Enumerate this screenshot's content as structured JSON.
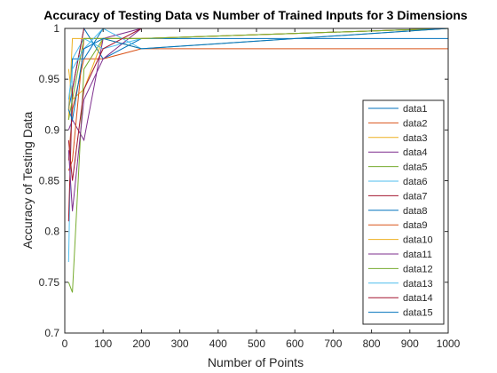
{
  "chart_data": {
    "type": "line",
    "title": "Accuracy of Testing Data vs Number of Trained Inputs for 3 Dimensions",
    "xlabel": "Number of Points",
    "ylabel": "Accuracy of Testing Data",
    "xlim": [
      0,
      1000
    ],
    "ylim": [
      0.7,
      1
    ],
    "xticks": [
      0,
      100,
      200,
      300,
      400,
      500,
      600,
      700,
      800,
      900,
      1000
    ],
    "yticks": [
      0.7,
      0.75,
      0.8,
      0.85,
      0.9,
      0.95,
      1
    ],
    "xtick_labels": [
      "0",
      "100",
      "200",
      "300",
      "400",
      "500",
      "600",
      "700",
      "800",
      "900",
      "1000"
    ],
    "ytick_labels": [
      "0.7",
      "0.75",
      "0.8",
      "0.85",
      "0.9",
      "0.95",
      "1"
    ],
    "grid": false,
    "legend_position": "right",
    "x": [
      10,
      20,
      50,
      100,
      200,
      1000
    ],
    "series": [
      {
        "name": "data1",
        "color": "#0072BD",
        "values": [
          0.92,
          0.94,
          1.0,
          0.97,
          0.99,
          0.99
        ]
      },
      {
        "name": "data2",
        "color": "#D95319",
        "values": [
          0.87,
          0.92,
          0.97,
          0.97,
          0.98,
          0.98
        ]
      },
      {
        "name": "data3",
        "color": "#EDB120",
        "values": [
          0.96,
          0.93,
          0.94,
          0.99,
          0.98,
          1.0
        ]
      },
      {
        "name": "data4",
        "color": "#7E2F8E",
        "values": [
          0.9,
          0.91,
          0.89,
          0.99,
          1.0,
          1.0
        ]
      },
      {
        "name": "data5",
        "color": "#77AC30",
        "values": [
          0.75,
          0.74,
          0.96,
          0.99,
          0.99,
          1.0
        ]
      },
      {
        "name": "data6",
        "color": "#4DBEEE",
        "values": [
          0.77,
          0.97,
          0.99,
          0.98,
          0.99,
          1.0
        ]
      },
      {
        "name": "data7",
        "color": "#A2142F",
        "values": [
          0.81,
          0.94,
          1.0,
          1.0,
          1.0,
          1.0
        ]
      },
      {
        "name": "data8",
        "color": "#0072BD",
        "values": [
          0.92,
          0.97,
          0.97,
          1.0,
          1.0,
          1.0
        ]
      },
      {
        "name": "data9",
        "color": "#D95319",
        "values": [
          0.86,
          0.87,
          0.99,
          0.99,
          0.99,
          1.0
        ]
      },
      {
        "name": "data10",
        "color": "#EDB120",
        "values": [
          0.91,
          0.99,
          0.99,
          0.99,
          0.99,
          1.0
        ]
      },
      {
        "name": "data11",
        "color": "#7E2F8E",
        "values": [
          0.88,
          0.82,
          0.93,
          0.97,
          1.0,
          1.0
        ]
      },
      {
        "name": "data12",
        "color": "#77AC30",
        "values": [
          0.91,
          0.93,
          0.99,
          0.99,
          0.99,
          1.0
        ]
      },
      {
        "name": "data13",
        "color": "#4DBEEE",
        "values": [
          0.93,
          0.96,
          0.98,
          1.0,
          0.98,
          1.0
        ]
      },
      {
        "name": "data14",
        "color": "#A2142F",
        "values": [
          0.89,
          0.85,
          0.94,
          0.98,
          1.0,
          1.0
        ]
      },
      {
        "name": "data15",
        "color": "#0072BD",
        "values": [
          0.92,
          0.91,
          0.98,
          0.99,
          0.98,
          1.0
        ]
      }
    ]
  }
}
